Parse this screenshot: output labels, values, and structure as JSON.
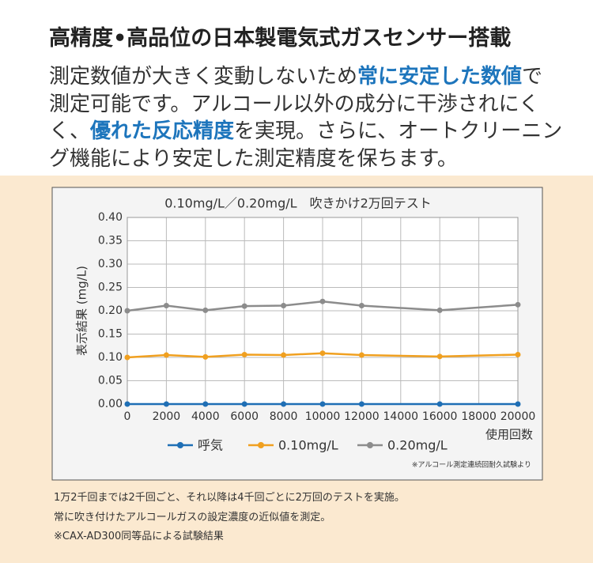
{
  "header": {
    "title": "高精度•高品位の日本製電気式ガスセンサー搭載",
    "paragraph": [
      {
        "text": "測定数値が大きく変動しないため",
        "emphasis": false
      },
      {
        "text": "常に安定した数値",
        "emphasis": true
      },
      {
        "text": "で測定可能です。アルコール以外の成分に干渉されにくく、",
        "emphasis": false
      },
      {
        "text": "優れた反応精度",
        "emphasis": true
      },
      {
        "text": "を実現。さらに、オートクリーニング機能により安定した測定精度を保ちます。",
        "emphasis": false
      }
    ]
  },
  "chart_data": {
    "type": "line",
    "title": "0.10mg/L／0.20mg/L　吹きかけ2万回テスト",
    "y_label": "表示結果 (mg/L)",
    "x_label": "使用回数",
    "source_note": "※アルコール測定連続回耐久試験より",
    "x": [
      0,
      2000,
      4000,
      6000,
      8000,
      10000,
      12000,
      16000,
      20000
    ],
    "series": [
      {
        "name": "呼気",
        "color": "#1f6fb5",
        "values": [
          0,
          0,
          0,
          0,
          0,
          0,
          0,
          0,
          0
        ]
      },
      {
        "name": "0.10mg/L",
        "color": "#f0a020",
        "values": [
          0.1,
          0.105,
          0.101,
          0.106,
          0.105,
          0.109,
          0.105,
          0.102,
          0.106
        ]
      },
      {
        "name": "0.20mg/L",
        "color": "#8c8c8c",
        "values": [
          0.2,
          0.211,
          0.201,
          0.21,
          0.211,
          0.22,
          0.211,
          0.201,
          0.213
        ]
      }
    ],
    "xlim": [
      0,
      20000
    ],
    "xticks": [
      0,
      2000,
      4000,
      6000,
      8000,
      10000,
      12000,
      14000,
      16000,
      18000,
      20000
    ],
    "ylim": [
      0,
      0.4
    ],
    "yticks": [
      {
        "value": 0,
        "label": "0.00"
      },
      {
        "value": 0.05,
        "label": "0.05"
      },
      {
        "value": 0.1,
        "label": "0.10"
      },
      {
        "value": 0.15,
        "label": "0.15"
      },
      {
        "value": 0.2,
        "label": "0.20"
      },
      {
        "value": 0.25,
        "label": "0.25"
      },
      {
        "value": 0.3,
        "label": "0.30"
      },
      {
        "value": 0.35,
        "label": "0.35"
      },
      {
        "value": 0.4,
        "label": "0.40"
      }
    ],
    "grid": true
  },
  "notes": [
    "1万2千回までは2千回ごと、それ以降は4千回ごとに2万回のテストを実施。",
    "常に吹き付けたアルコールガスの設定濃度の近似値を測定。",
    "※CAX-AD300同等品による試験結果"
  ]
}
